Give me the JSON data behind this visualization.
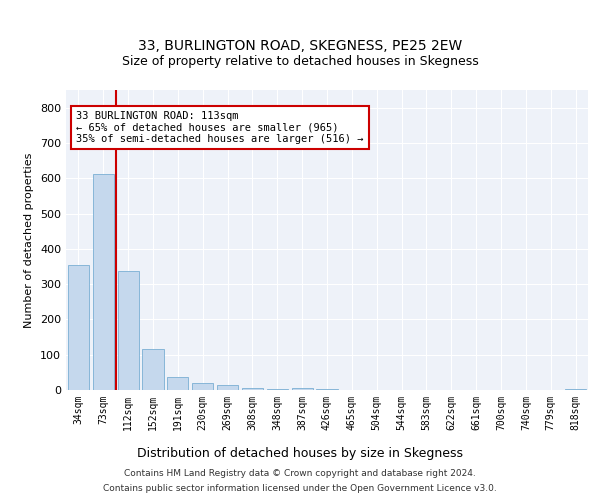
{
  "title": "33, BURLINGTON ROAD, SKEGNESS, PE25 2EW",
  "subtitle": "Size of property relative to detached houses in Skegness",
  "xlabel": "Distribution of detached houses by size in Skegness",
  "ylabel": "Number of detached properties",
  "categories": [
    "34sqm",
    "73sqm",
    "112sqm",
    "152sqm",
    "191sqm",
    "230sqm",
    "269sqm",
    "308sqm",
    "348sqm",
    "387sqm",
    "426sqm",
    "465sqm",
    "504sqm",
    "544sqm",
    "583sqm",
    "622sqm",
    "661sqm",
    "700sqm",
    "740sqm",
    "779sqm",
    "818sqm"
  ],
  "values": [
    355,
    612,
    338,
    115,
    38,
    20,
    14,
    7,
    2,
    5,
    2,
    0,
    0,
    0,
    0,
    0,
    0,
    0,
    0,
    0,
    4
  ],
  "bar_color": "#c5d8ed",
  "bar_edge_color": "#7aafd4",
  "highlight_bar_index": 2,
  "highlight_color": "#cc0000",
  "annotation_text": "33 BURLINGTON ROAD: 113sqm\n← 65% of detached houses are smaller (965)\n35% of semi-detached houses are larger (516) →",
  "annotation_box_color": "#ffffff",
  "annotation_box_edge": "#cc0000",
  "ylim": [
    0,
    850
  ],
  "yticks": [
    0,
    100,
    200,
    300,
    400,
    500,
    600,
    700,
    800
  ],
  "footer_line1": "Contains HM Land Registry data © Crown copyright and database right 2024.",
  "footer_line2": "Contains public sector information licensed under the Open Government Licence v3.0.",
  "background_color": "#eef2f9",
  "title_fontsize": 10,
  "subtitle_fontsize": 9,
  "ylabel_fontsize": 8,
  "xlabel_fontsize": 9
}
